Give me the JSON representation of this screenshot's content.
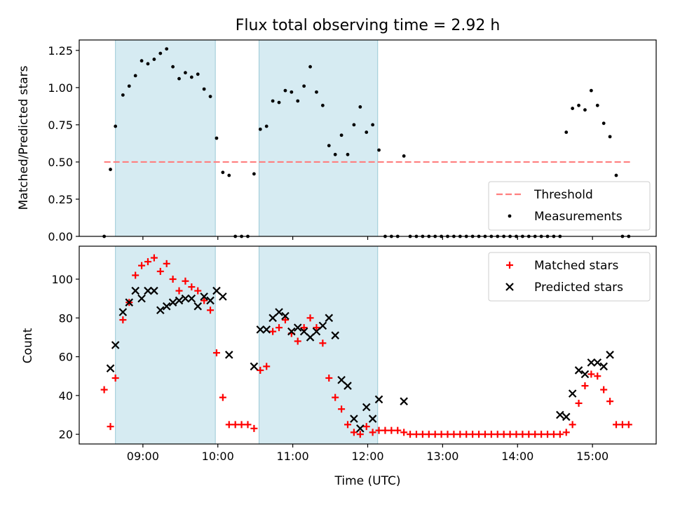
{
  "chart_data": [
    {
      "type": "scatter",
      "title": "Flux total observing time = 2.92 h",
      "xlabel": "",
      "ylabel": "Matched/Predicted stars",
      "xlim": [
        "08:09",
        "15:51"
      ],
      "ylim": [
        0,
        1.32
      ],
      "x_ticks": [
        "09:00",
        "10:00",
        "11:00",
        "12:00",
        "13:00",
        "14:00",
        "15:00"
      ],
      "y_ticks": [
        "0.00",
        "0.25",
        "0.50",
        "0.75",
        "1.00",
        "1.25"
      ],
      "shaded_intervals": [
        [
          "08:38",
          "09:58"
        ],
        [
          "10:33",
          "12:08"
        ]
      ],
      "legend": {
        "position": "lower-right",
        "entries": [
          "Threshold",
          "Measurements"
        ]
      },
      "threshold": {
        "name": "Threshold",
        "value": 0.5,
        "x_range": [
          "08:29",
          "15:31"
        ],
        "color": "#ff7f7f"
      },
      "series": [
        {
          "name": "Measurements",
          "color": "#000000",
          "x": [
            "08:29",
            "08:34",
            "08:38",
            "08:44",
            "08:49",
            "08:54",
            "08:59",
            "09:04",
            "09:09",
            "09:14",
            "09:19",
            "09:24",
            "09:29",
            "09:34",
            "09:39",
            "09:44",
            "09:49",
            "09:54",
            "09:59",
            "10:04",
            "10:09",
            "10:14",
            "10:19",
            "10:24",
            "10:29",
            "10:34",
            "10:39",
            "10:44",
            "10:49",
            "10:54",
            "10:59",
            "11:04",
            "11:09",
            "11:14",
            "11:19",
            "11:24",
            "11:29",
            "11:34",
            "11:39",
            "11:44",
            "11:49",
            "11:54",
            "11:59",
            "12:04",
            "12:09",
            "12:14",
            "12:19",
            "12:24",
            "12:29",
            "12:34",
            "12:39",
            "12:44",
            "12:49",
            "12:54",
            "12:59",
            "13:04",
            "13:09",
            "13:14",
            "13:19",
            "13:24",
            "13:29",
            "13:34",
            "13:39",
            "13:44",
            "13:49",
            "13:54",
            "13:59",
            "14:04",
            "14:09",
            "14:14",
            "14:19",
            "14:24",
            "14:29",
            "14:34",
            "14:39",
            "14:44",
            "14:49",
            "14:54",
            "14:59",
            "15:04",
            "15:09",
            "15:14",
            "15:19",
            "15:24",
            "15:29"
          ],
          "y": [
            0.0,
            0.45,
            0.74,
            0.95,
            1.01,
            1.08,
            1.18,
            1.16,
            1.19,
            1.23,
            1.26,
            1.14,
            1.06,
            1.1,
            1.07,
            1.09,
            0.99,
            0.94,
            0.66,
            0.43,
            0.41,
            0.0,
            0.0,
            0.0,
            0.42,
            0.72,
            0.74,
            0.91,
            0.9,
            0.98,
            0.97,
            0.91,
            1.01,
            1.14,
            0.97,
            0.88,
            0.61,
            0.55,
            0.68,
            0.55,
            0.75,
            0.87,
            0.7,
            0.75,
            0.58,
            0.0,
            0.0,
            0.0,
            0.54,
            0.0,
            0.0,
            0.0,
            0.0,
            0.0,
            0.0,
            0.0,
            0.0,
            0.0,
            0.0,
            0.0,
            0.0,
            0.0,
            0.0,
            0.0,
            0.0,
            0.0,
            0.0,
            0.0,
            0.0,
            0.0,
            0.0,
            0.0,
            0.0,
            0.0,
            0.7,
            0.86,
            0.88,
            0.85,
            0.98,
            0.88,
            0.76,
            0.67,
            0.41,
            0.0,
            0.0
          ]
        }
      ]
    },
    {
      "type": "scatter",
      "title": "",
      "xlabel": "Time (UTC)",
      "ylabel": "Count",
      "xlim": [
        "08:09",
        "15:51"
      ],
      "ylim": [
        15,
        117
      ],
      "x_ticks": [
        "09:00",
        "10:00",
        "11:00",
        "12:00",
        "13:00",
        "14:00",
        "15:00"
      ],
      "y_ticks": [
        "20",
        "40",
        "60",
        "80",
        "100"
      ],
      "shaded_intervals": [
        [
          "08:38",
          "09:58"
        ],
        [
          "10:33",
          "12:08"
        ]
      ],
      "legend": {
        "position": "top-right",
        "entries": [
          "Matched stars",
          "Predicted stars"
        ]
      },
      "series": [
        {
          "name": "Matched stars",
          "marker": "+",
          "color": "#ff0000",
          "x": [
            "08:29",
            "08:34",
            "08:38",
            "08:44",
            "08:49",
            "08:54",
            "08:59",
            "09:04",
            "09:09",
            "09:14",
            "09:19",
            "09:24",
            "09:29",
            "09:34",
            "09:39",
            "09:44",
            "09:49",
            "09:54",
            "09:59",
            "10:04",
            "10:09",
            "10:14",
            "10:19",
            "10:24",
            "10:29",
            "10:34",
            "10:39",
            "10:44",
            "10:49",
            "10:54",
            "10:59",
            "11:04",
            "11:09",
            "11:14",
            "11:19",
            "11:24",
            "11:29",
            "11:34",
            "11:39",
            "11:44",
            "11:49",
            "11:54",
            "11:59",
            "12:04",
            "12:09",
            "12:14",
            "12:19",
            "12:24",
            "12:29",
            "12:34",
            "12:39",
            "12:44",
            "12:49",
            "12:54",
            "12:59",
            "13:04",
            "13:09",
            "13:14",
            "13:19",
            "13:24",
            "13:29",
            "13:34",
            "13:39",
            "13:44",
            "13:49",
            "13:54",
            "13:59",
            "14:04",
            "14:09",
            "14:14",
            "14:19",
            "14:24",
            "14:29",
            "14:34",
            "14:39",
            "14:44",
            "14:49",
            "14:54",
            "14:59",
            "15:04",
            "15:09",
            "15:14",
            "15:19",
            "15:24",
            "15:29"
          ],
          "y": [
            43,
            24,
            49,
            79,
            88,
            102,
            107,
            109,
            111,
            104,
            108,
            100,
            94,
            99,
            96,
            94,
            89,
            84,
            62,
            39,
            25,
            25,
            25,
            25,
            23,
            53,
            55,
            73,
            75,
            79,
            72,
            68,
            75,
            80,
            75,
            67,
            49,
            39,
            33,
            25,
            21,
            20,
            24,
            21,
            22,
            22,
            22,
            22,
            21,
            20,
            20,
            20,
            20,
            20,
            20,
            20,
            20,
            20,
            20,
            20,
            20,
            20,
            20,
            20,
            20,
            20,
            20,
            20,
            20,
            20,
            20,
            20,
            20,
            20,
            21,
            25,
            36,
            45,
            51,
            50,
            43,
            37,
            25,
            25,
            25
          ]
        },
        {
          "name": "Predicted stars",
          "marker": "x",
          "color": "#000000",
          "x": [
            "08:34",
            "08:38",
            "08:44",
            "08:49",
            "08:54",
            "08:59",
            "09:04",
            "09:09",
            "09:14",
            "09:19",
            "09:24",
            "09:29",
            "09:34",
            "09:39",
            "09:44",
            "09:49",
            "09:54",
            "09:59",
            "10:04",
            "10:09",
            "10:29",
            "10:34",
            "10:39",
            "10:44",
            "10:49",
            "10:54",
            "10:59",
            "11:04",
            "11:09",
            "11:14",
            "11:19",
            "11:24",
            "11:29",
            "11:34",
            "11:39",
            "11:44",
            "11:49",
            "11:54",
            "11:59",
            "12:04",
            "12:09",
            "12:29",
            "14:34",
            "14:39",
            "14:44",
            "14:49",
            "14:54",
            "14:59",
            "15:04",
            "15:09",
            "15:14"
          ],
          "y": [
            54,
            66,
            83,
            88,
            94,
            90,
            94,
            94,
            84,
            86,
            88,
            89,
            90,
            90,
            86,
            91,
            89,
            94,
            91,
            61,
            55,
            74,
            74,
            80,
            83,
            81,
            73,
            75,
            73,
            70,
            73,
            76,
            80,
            71,
            48,
            45,
            28,
            23,
            34,
            28,
            38,
            37,
            30,
            29,
            41,
            53,
            51,
            57,
            57,
            55,
            61
          ]
        }
      ]
    }
  ]
}
